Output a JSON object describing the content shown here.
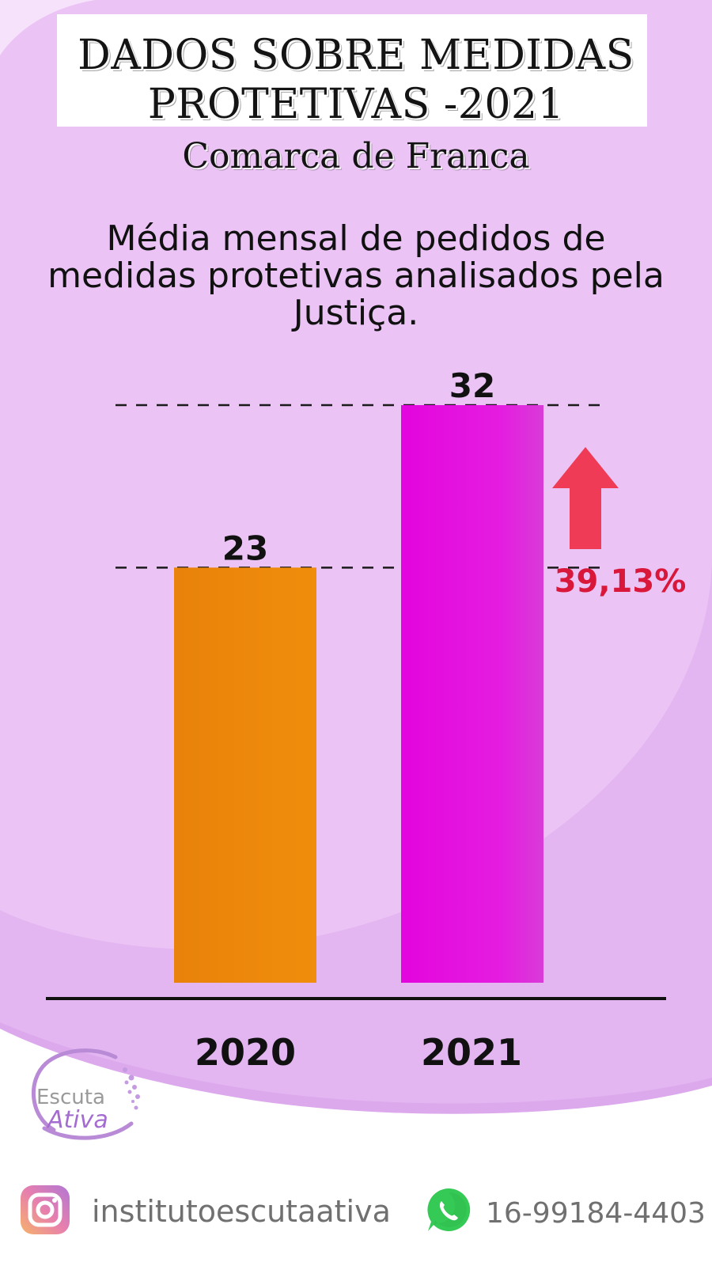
{
  "header": {
    "title_line1": "DADOS SOBRE MEDIDAS",
    "title_line2": "PROTETIVAS -2021",
    "subtitle": "Comarca de Franca"
  },
  "chart_data": {
    "type": "bar",
    "title": "Média mensal de pedidos de medidas protetivas analisados pela Justiça.",
    "categories": [
      "2020",
      "2021"
    ],
    "values": [
      23,
      32
    ],
    "data_labels": [
      "23",
      "32"
    ],
    "colors": [
      "#f0890a",
      "#e31de0"
    ],
    "ylim": [
      0,
      32
    ],
    "annotation": {
      "text": "39,13%",
      "icon": "arrow-up-icon",
      "color": "#d9173a"
    }
  },
  "footer": {
    "instagram": "institutoescutaativa",
    "phone": "16-99184-4403",
    "logo_word1": "Escuta",
    "logo_word2": "Ativa",
    "instagram_icon": "instagram-icon",
    "whatsapp_icon": "whatsapp-icon"
  },
  "colors": {
    "background": "#e3b4f0",
    "background_light": "#f0d2f8",
    "arrow": "#ef3b56",
    "percent_text": "#d9173a"
  }
}
